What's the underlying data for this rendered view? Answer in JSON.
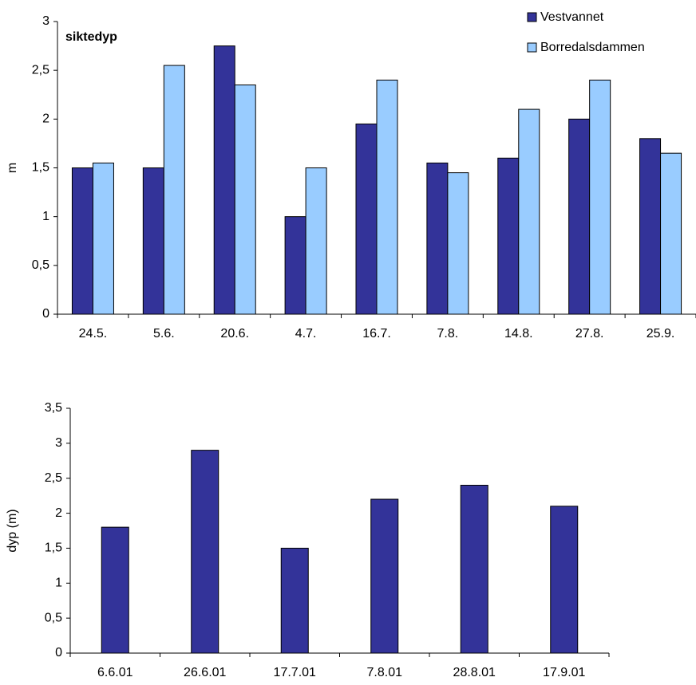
{
  "chart_data": [
    {
      "type": "bar",
      "title": "siktedyp",
      "y_label": "m",
      "categories": [
        "24.5.",
        "5.6.",
        "20.6.",
        "4.7.",
        "16.7.",
        "7.8.",
        "14.8.",
        "27.8.",
        "25.9."
      ],
      "series": [
        {
          "name": "Vestvannet",
          "color": "#333399",
          "values": [
            1.5,
            1.5,
            2.75,
            1.0,
            1.95,
            1.55,
            1.6,
            2.0,
            1.8
          ]
        },
        {
          "name": "Borredalsdammen",
          "color": "#99ccff",
          "values": [
            1.55,
            2.55,
            2.35,
            1.5,
            2.4,
            1.45,
            2.1,
            2.4,
            1.65
          ]
        }
      ],
      "ylim": [
        0,
        3
      ],
      "yticks": [
        0,
        {
          "value": 0.5,
          "label": "0,5"
        },
        1,
        {
          "value": 1.5,
          "label": "1,5"
        },
        2,
        {
          "value": 2.5,
          "label": "2,5"
        },
        3
      ],
      "grid": false,
      "legend": "top-right"
    },
    {
      "type": "bar",
      "y_label": "dyp (m)",
      "categories": [
        "6.6.01",
        "26.6.01",
        "17.7.01",
        "7.8.01",
        "28.8.01",
        "17.9.01"
      ],
      "values": [
        1.8,
        2.9,
        1.5,
        2.2,
        2.4,
        2.1
      ],
      "color": "#333399",
      "ylim": [
        0,
        3.5
      ],
      "yticks": [
        0,
        {
          "value": 0.5,
          "label": "0,5"
        },
        1,
        {
          "value": 1.5,
          "label": "1,5"
        },
        2,
        {
          "value": 2.5,
          "label": "2,5"
        },
        3,
        {
          "value": 3.5,
          "label": "3,5"
        }
      ],
      "grid": false
    }
  ]
}
